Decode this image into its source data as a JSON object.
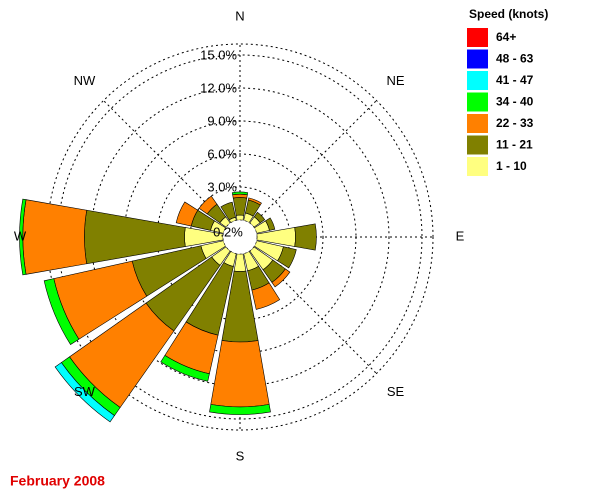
{
  "chart_data": {
    "type": "windrose",
    "categories": [
      "N",
      null,
      "NE",
      null,
      "E",
      null,
      "SE",
      null,
      "S",
      null,
      "SW",
      null,
      "W",
      null,
      "NW",
      null
    ],
    "series": [
      {
        "name": "1 - 10",
        "color": "#ffff80",
        "values": [
          0.45,
          0.7,
          0.7,
          1.2,
          3.5,
          2.5,
          2.1,
          1.6,
          1.6,
          1.2,
          1.6,
          2.1,
          3.5,
          1.2,
          0.7,
          0.3
        ]
      },
      {
        "name": "11 - 21",
        "color": "#808000",
        "values": [
          1.6,
          1.2,
          0.5,
          0.5,
          1.9,
          1.2,
          1.4,
          1.8,
          6.4,
          6.4,
          7.3,
          6.4,
          9.1,
          1.8,
          1.4,
          1.4
        ]
      },
      {
        "name": "22 - 33",
        "color": "#ff8000",
        "values": [
          0.3,
          0.2,
          0,
          0,
          0,
          0,
          0.5,
          1.8,
          5.9,
          3.6,
          8.5,
          7.3,
          5.6,
          1.4,
          0.9,
          0
        ]
      },
      {
        "name": "34 - 40",
        "color": "#00ff00",
        "values": [
          0.2,
          0,
          0,
          0,
          0,
          0,
          0,
          0,
          0.7,
          0.7,
          0.9,
          0.9,
          0.3,
          0,
          0,
          0
        ]
      },
      {
        "name": "41 - 47",
        "color": "#00ffff",
        "values": [
          0,
          0,
          0,
          0,
          0,
          0,
          0,
          0,
          0,
          0,
          0.7,
          0,
          0,
          0,
          0,
          0
        ]
      },
      {
        "name": "48 - 63",
        "color": "#0000ff",
        "values": [
          0,
          0,
          0,
          0,
          0,
          0,
          0,
          0,
          0,
          0,
          0,
          0,
          0,
          0,
          0,
          0
        ]
      },
      {
        "name": "64+",
        "color": "#ff0000",
        "values": [
          0,
          0,
          0,
          0,
          0,
          0,
          0,
          0,
          0,
          0,
          0,
          0,
          0,
          0,
          0,
          0
        ]
      }
    ],
    "legend_title": "Speed (knots)",
    "rlim": [
      0,
      16
    ],
    "rticks": [
      {
        "value": 3,
        "label": "3.0%"
      },
      {
        "value": 6,
        "label": "6.0%"
      },
      {
        "value": 9,
        "label": "9.0%"
      },
      {
        "value": 12,
        "label": "12.0%"
      },
      {
        "value": 15,
        "label": "15.0%"
      }
    ],
    "calm": {
      "value": 0.2,
      "label": "0.2%"
    },
    "footer": "February 2008"
  }
}
